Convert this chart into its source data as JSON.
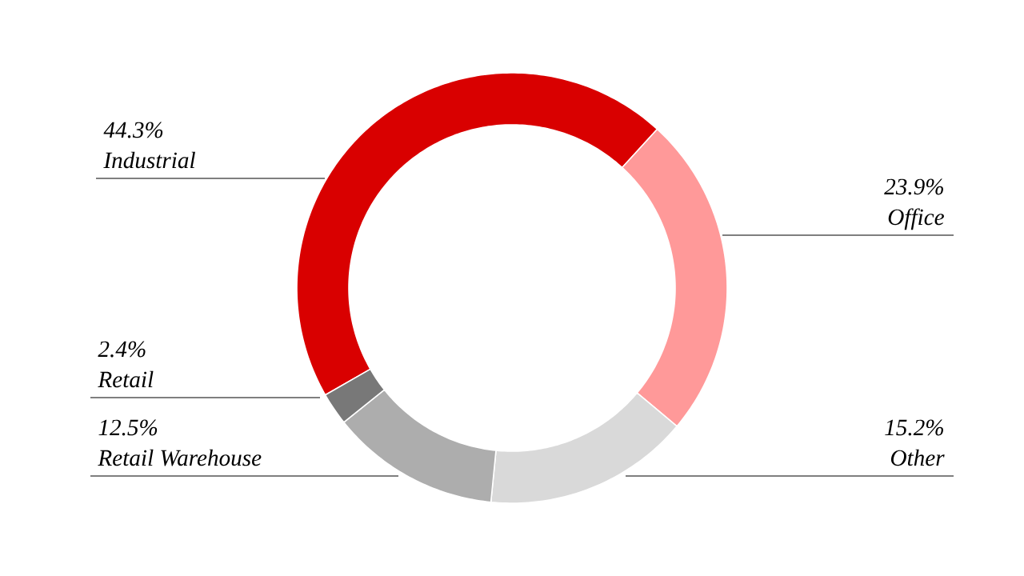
{
  "chart_data": {
    "type": "donut",
    "categories": [
      "Industrial",
      "Office",
      "Other",
      "Retail Warehouse",
      "Retail"
    ],
    "values": [
      44.3,
      23.9,
      15.2,
      12.5,
      2.4
    ],
    "colors": [
      "#d90000",
      "#ff9999",
      "#d9d9d9",
      "#adadad",
      "#787878"
    ],
    "value_labels": [
      "44.3%",
      "23.9%",
      "15.2%",
      "12.5%",
      "2.4%"
    ]
  }
}
